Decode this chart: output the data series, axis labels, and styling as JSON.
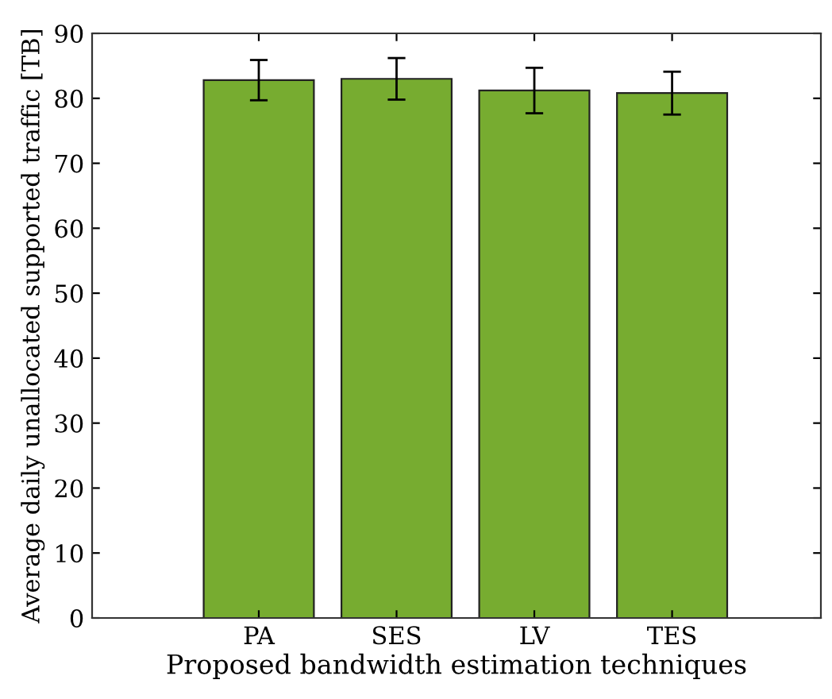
{
  "chart_data": {
    "type": "bar",
    "xlabel": "Proposed bandwidth estimation techniques",
    "ylabel": "Average daily unallocated supported traffic [TB]",
    "categories": [
      "PA",
      "SES",
      "LV",
      "TES"
    ],
    "values": [
      82.8,
      83.0,
      81.2,
      80.8
    ],
    "errors": [
      3.1,
      3.2,
      3.5,
      3.3
    ],
    "color": "#77ac30",
    "ylim": [
      0,
      90
    ],
    "yticks": [
      0,
      10,
      20,
      30,
      40,
      50,
      60,
      70,
      80,
      90
    ],
    "grid": false
  }
}
